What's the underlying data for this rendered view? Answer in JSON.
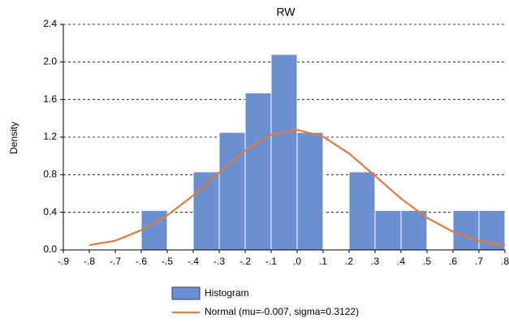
{
  "chart_data": {
    "type": "histogram",
    "title": "RW",
    "y_label": "Density",
    "bins": [
      -0.6,
      -0.5,
      -0.4,
      -0.3,
      -0.2,
      -0.1,
      0,
      0.1,
      0.2,
      0.3,
      0.4,
      0.5,
      0.6,
      0.7,
      0.8
    ],
    "series": [
      {
        "name": "Histogram",
        "color": "#6b8fd0",
        "values": [
          0.42,
          0,
          0.83,
          1.25,
          1.67,
          2.08,
          1.25,
          0,
          0.83,
          0.42,
          0.42,
          0,
          0.42,
          0.42
        ]
      },
      {
        "name": "Normal (mu=-0.007, sigma=0.3122)",
        "color": "#e07b39",
        "x": [
          -0.8,
          -0.7,
          -0.6,
          -0.5,
          -0.4,
          -0.3,
          -0.2,
          -0.1,
          0,
          0.1,
          0.2,
          0.3,
          0.4,
          0.5,
          0.6,
          0.7,
          0.8
        ],
        "values": [
          0.051,
          0.098,
          0.21,
          0.367,
          0.579,
          0.823,
          1.056,
          1.223,
          1.278,
          1.205,
          1.026,
          0.788,
          0.546,
          0.342,
          0.193,
          0.098,
          0.045
        ]
      }
    ],
    "xlim": [
      -0.9,
      0.8
    ],
    "ylim": [
      0,
      2.4
    ],
    "xticks": [
      {
        "value": -0.9,
        "label": "-.9"
      },
      {
        "value": -0.8,
        "label": "-.8"
      },
      {
        "value": -0.7,
        "label": "-.7"
      },
      {
        "value": -0.6,
        "label": "-.6"
      },
      {
        "value": -0.5,
        "label": "-.5"
      },
      {
        "value": -0.4,
        "label": "-.4"
      },
      {
        "value": -0.3,
        "label": "-.3"
      },
      {
        "value": -0.2,
        "label": "-.2"
      },
      {
        "value": -0.1,
        "label": "-.1"
      },
      {
        "value": 0,
        "label": ".0"
      },
      {
        "value": 0.1,
        "label": ".1"
      },
      {
        "value": 0.2,
        "label": ".2"
      },
      {
        "value": 0.3,
        "label": ".3"
      },
      {
        "value": 0.4,
        "label": ".4"
      },
      {
        "value": 0.5,
        "label": ".5"
      },
      {
        "value": 0.6,
        "label": ".6"
      },
      {
        "value": 0.7,
        "label": ".7"
      },
      {
        "value": 0.8,
        "label": ".8"
      }
    ],
    "yticks": [
      {
        "value": 0,
        "label": "0.0"
      },
      0.4,
      0.8,
      1.2,
      1.6,
      {
        "value": 2,
        "label": "2.0"
      },
      2.4
    ],
    "grid": true
  }
}
